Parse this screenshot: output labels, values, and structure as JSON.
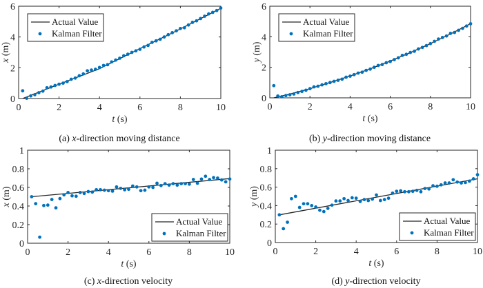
{
  "colors": {
    "actual": "#262626",
    "kalman": "#0072BD",
    "axis": "#262626"
  },
  "chart_data": [
    {
      "id": "a",
      "type": "line",
      "caption_prefix": "(a) ",
      "caption_var": "x",
      "caption_rest": "-direction moving distance",
      "xlabel_var": "t",
      "xlabel_unit": " (s)",
      "ylabel_var": "x",
      "ylabel_unit": " (m)",
      "xlim": [
        0,
        10
      ],
      "ylim": [
        0,
        6
      ],
      "xticks": [
        0,
        2,
        4,
        6,
        8,
        10
      ],
      "yticks": [
        0,
        2,
        4,
        6
      ],
      "ytick_labels": [
        "0",
        "2",
        "4",
        "6"
      ],
      "legend": {
        "position": "top-left",
        "entries": [
          "Actual Value",
          "Kalman Filter"
        ]
      },
      "series": [
        {
          "name": "Actual Value",
          "kind": "line",
          "x": [
            0.2,
            2,
            4,
            6,
            8,
            10
          ],
          "y": [
            0.0,
            0.93,
            1.94,
            3.24,
            4.52,
            5.86
          ]
        },
        {
          "name": "Kalman Filter",
          "kind": "scatter",
          "x": [
            0.2,
            0.4,
            0.6,
            0.8,
            1.0,
            1.2,
            1.4,
            1.6,
            1.8,
            2.0,
            2.2,
            2.4,
            2.6,
            2.8,
            3.0,
            3.2,
            3.4,
            3.6,
            3.8,
            4.0,
            4.2,
            4.4,
            4.6,
            4.8,
            5.0,
            5.2,
            5.4,
            5.6,
            5.8,
            6.0,
            6.2,
            6.4,
            6.6,
            6.8,
            7.0,
            7.2,
            7.4,
            7.6,
            7.8,
            8.0,
            8.2,
            8.4,
            8.6,
            8.8,
            9.0,
            9.2,
            9.4,
            9.6,
            9.8,
            10.0
          ],
          "y": [
            0.5,
            0.02,
            0.17,
            0.25,
            0.38,
            0.48,
            0.7,
            0.75,
            0.85,
            0.93,
            1.0,
            1.1,
            1.25,
            1.33,
            1.48,
            1.6,
            1.8,
            1.85,
            1.9,
            2.02,
            2.15,
            2.2,
            2.38,
            2.5,
            2.62,
            2.78,
            2.88,
            3.0,
            3.1,
            3.2,
            3.35,
            3.45,
            3.65,
            3.75,
            3.85,
            4.0,
            4.15,
            4.28,
            4.4,
            4.55,
            4.6,
            4.78,
            4.95,
            5.05,
            5.2,
            5.35,
            5.5,
            5.6,
            5.72,
            5.88
          ]
        }
      ]
    },
    {
      "id": "b",
      "type": "line",
      "caption_prefix": "(b) ",
      "caption_var": "y",
      "caption_rest": "-direction moving distance",
      "xlabel_var": "t",
      "xlabel_unit": " (s)",
      "ylabel_var": "y",
      "ylabel_unit": " (m)",
      "xlim": [
        0,
        10
      ],
      "ylim": [
        0,
        6
      ],
      "xticks": [
        0,
        2,
        4,
        6,
        8,
        10
      ],
      "yticks": [
        0,
        2,
        4,
        6
      ],
      "ytick_labels": [
        "0",
        "2",
        "4",
        "6"
      ],
      "legend": {
        "position": "top-left",
        "entries": [
          "Actual Value",
          "Kalman Filter"
        ]
      },
      "series": [
        {
          "name": "Actual Value",
          "kind": "line",
          "x": [
            0.2,
            1,
            2,
            3,
            4,
            5,
            6,
            7,
            8,
            9,
            10
          ],
          "y": [
            0.0,
            0.25,
            0.6,
            1.0,
            1.43,
            1.9,
            2.41,
            2.96,
            3.55,
            4.18,
            4.86
          ]
        },
        {
          "name": "Kalman Filter",
          "kind": "scatter",
          "x": [
            0.2,
            0.4,
            0.6,
            0.8,
            1.0,
            1.2,
            1.4,
            1.6,
            1.8,
            2.0,
            2.2,
            2.4,
            2.6,
            2.8,
            3.0,
            3.2,
            3.4,
            3.6,
            3.8,
            4.0,
            4.2,
            4.4,
            4.6,
            4.8,
            5.0,
            5.2,
            5.4,
            5.6,
            5.8,
            6.0,
            6.2,
            6.4,
            6.6,
            6.8,
            7.0,
            7.2,
            7.4,
            7.6,
            7.8,
            8.0,
            8.2,
            8.4,
            8.6,
            8.8,
            9.0,
            9.2,
            9.4,
            9.6,
            9.8,
            10.0
          ],
          "y": [
            0.8,
            0.12,
            0.07,
            0.15,
            0.2,
            0.25,
            0.35,
            0.42,
            0.5,
            0.6,
            0.72,
            0.76,
            0.85,
            0.93,
            1.0,
            1.08,
            1.15,
            1.22,
            1.35,
            1.42,
            1.52,
            1.62,
            1.68,
            1.8,
            1.88,
            2.0,
            2.12,
            2.18,
            2.3,
            2.38,
            2.5,
            2.62,
            2.78,
            2.85,
            2.97,
            3.05,
            3.2,
            3.3,
            3.42,
            3.55,
            3.7,
            3.85,
            3.95,
            4.05,
            4.22,
            4.28,
            4.42,
            4.55,
            4.7,
            4.85
          ]
        }
      ]
    },
    {
      "id": "c",
      "type": "line",
      "caption_prefix": "(c) ",
      "caption_var": "x",
      "caption_rest": "-direction velocity",
      "xlabel_var": "t",
      "xlabel_unit": " (s)",
      "ylabel_var": "x",
      "ylabel_unit": " (m)",
      "xlim": [
        0,
        10
      ],
      "ylim": [
        0,
        1
      ],
      "xticks": [
        0,
        2,
        4,
        6,
        8,
        10
      ],
      "yticks": [
        0,
        0.2,
        0.4,
        0.6,
        0.8,
        1
      ],
      "ytick_labels": [
        "0",
        "0.2",
        "0.4",
        "0.6",
        "0.8",
        "1"
      ],
      "legend": {
        "position": "bottom-right",
        "entries": [
          "Actual Value",
          "Kalman Filter"
        ]
      },
      "series": [
        {
          "name": "Actual Value",
          "kind": "line",
          "x": [
            0.2,
            10
          ],
          "y": [
            0.5,
            0.695
          ]
        },
        {
          "name": "Kalman Filter",
          "kind": "scatter",
          "x": [
            0.2,
            0.4,
            0.6,
            0.8,
            1.0,
            1.2,
            1.4,
            1.6,
            1.8,
            2.0,
            2.2,
            2.4,
            2.6,
            2.8,
            3.0,
            3.2,
            3.4,
            3.6,
            3.8,
            4.0,
            4.2,
            4.4,
            4.6,
            4.8,
            5.0,
            5.2,
            5.4,
            5.6,
            5.8,
            6.0,
            6.2,
            6.4,
            6.6,
            6.8,
            7.0,
            7.2,
            7.4,
            7.6,
            7.8,
            8.0,
            8.2,
            8.4,
            8.6,
            8.8,
            9.0,
            9.2,
            9.4,
            9.6,
            9.8,
            10.0
          ],
          "y": [
            0.5,
            0.425,
            0.065,
            0.405,
            0.41,
            0.47,
            0.38,
            0.48,
            0.52,
            0.545,
            0.51,
            0.505,
            0.545,
            0.535,
            0.555,
            0.55,
            0.575,
            0.575,
            0.57,
            0.565,
            0.56,
            0.605,
            0.59,
            0.575,
            0.58,
            0.615,
            0.605,
            0.565,
            0.57,
            0.605,
            0.6,
            0.645,
            0.62,
            0.64,
            0.625,
            0.64,
            0.625,
            0.64,
            0.64,
            0.635,
            0.685,
            0.645,
            0.69,
            0.72,
            0.685,
            0.705,
            0.7,
            0.68,
            0.66,
            0.69
          ]
        }
      ]
    },
    {
      "id": "d",
      "type": "line",
      "caption_prefix": "(d) ",
      "caption_var": "y",
      "caption_rest": "-direction velocity",
      "xlabel_var": "t",
      "xlabel_unit": " (s)",
      "ylabel_var": "y",
      "ylabel_unit": " (m)",
      "xlim": [
        0,
        10
      ],
      "ylim": [
        0,
        1
      ],
      "xticks": [
        0,
        2,
        4,
        6,
        8,
        10
      ],
      "yticks": [
        0,
        0.2,
        0.4,
        0.6,
        0.8,
        1
      ],
      "ytick_labels": [
        "0",
        "0.2",
        "0.4",
        "0.6",
        "0.8",
        "1"
      ],
      "legend": {
        "position": "bottom-right",
        "entries": [
          "Actual Value",
          "Kalman Filter"
        ]
      },
      "series": [
        {
          "name": "Actual Value",
          "kind": "line",
          "x": [
            0.2,
            10
          ],
          "y": [
            0.3,
            0.69
          ]
        },
        {
          "name": "Kalman Filter",
          "kind": "scatter",
          "x": [
            0.2,
            0.4,
            0.6,
            0.8,
            1.0,
            1.2,
            1.4,
            1.6,
            1.8,
            2.0,
            2.2,
            2.4,
            2.6,
            2.8,
            3.0,
            3.2,
            3.4,
            3.6,
            3.8,
            4.0,
            4.2,
            4.4,
            4.6,
            4.8,
            5.0,
            5.2,
            5.4,
            5.6,
            5.8,
            6.0,
            6.2,
            6.4,
            6.6,
            6.8,
            7.0,
            7.2,
            7.4,
            7.6,
            7.8,
            8.0,
            8.2,
            8.4,
            8.6,
            8.8,
            9.0,
            9.2,
            9.4,
            9.6,
            9.8,
            10.0
          ],
          "y": [
            0.3,
            0.15,
            0.22,
            0.475,
            0.5,
            0.38,
            0.42,
            0.42,
            0.4,
            0.385,
            0.35,
            0.335,
            0.37,
            0.405,
            0.45,
            0.45,
            0.475,
            0.455,
            0.485,
            0.48,
            0.445,
            0.465,
            0.455,
            0.47,
            0.515,
            0.455,
            0.465,
            0.48,
            0.535,
            0.555,
            0.56,
            0.55,
            0.55,
            0.555,
            0.565,
            0.55,
            0.585,
            0.58,
            0.615,
            0.61,
            0.625,
            0.645,
            0.645,
            0.68,
            0.655,
            0.645,
            0.65,
            0.665,
            0.69,
            0.735
          ]
        }
      ]
    }
  ]
}
